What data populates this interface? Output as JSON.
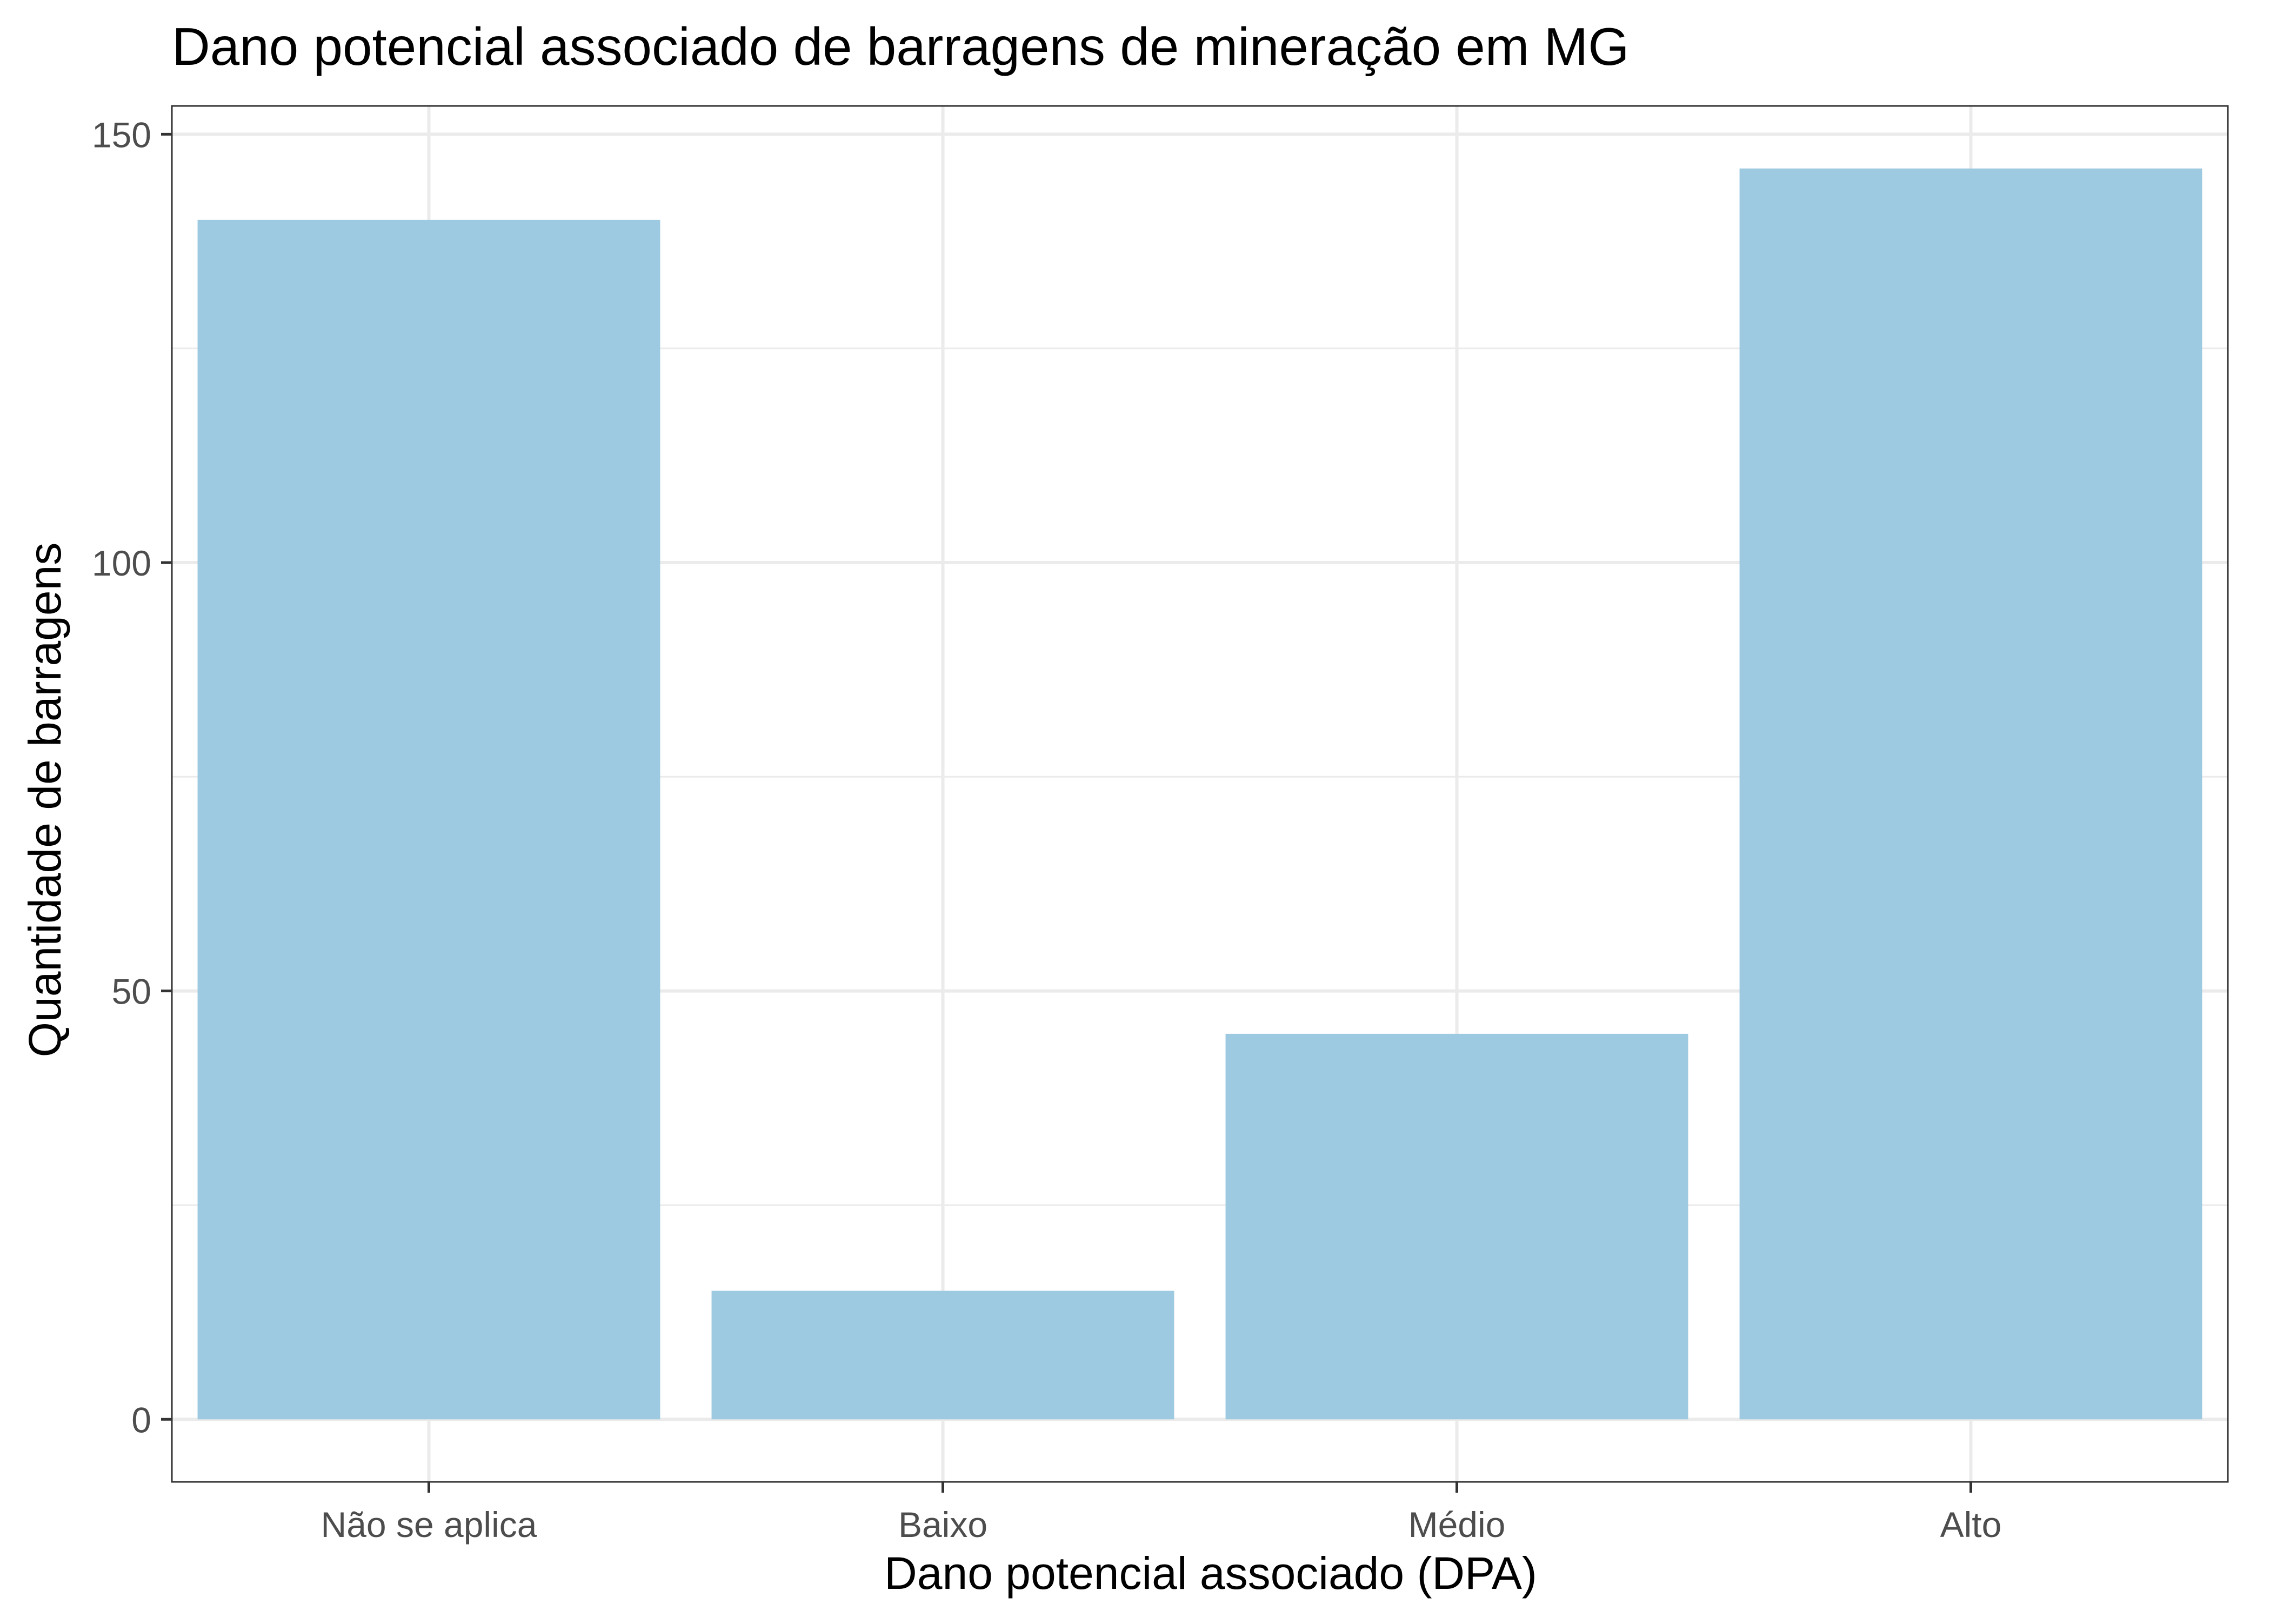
{
  "chart_data": {
    "type": "bar",
    "title": "Dano potencial associado de barragens de mineração em MG",
    "xlabel": "Dano potencial associado (DPA)",
    "ylabel": "Quantidade de barragens",
    "categories": [
      "Não se aplica",
      "Baixo",
      "Médio",
      "Alto"
    ],
    "values": [
      140,
      15,
      45,
      146
    ],
    "ylim": [
      -7.3,
      153.3
    ],
    "yticks": [
      0,
      50,
      100,
      150
    ],
    "y_minor_ticks": [
      25,
      75,
      125
    ],
    "grid": true,
    "legend": "none",
    "bar_color": "#9ECAE1",
    "panel_border_color": "#333333",
    "grid_color": "#EBEBEB"
  }
}
